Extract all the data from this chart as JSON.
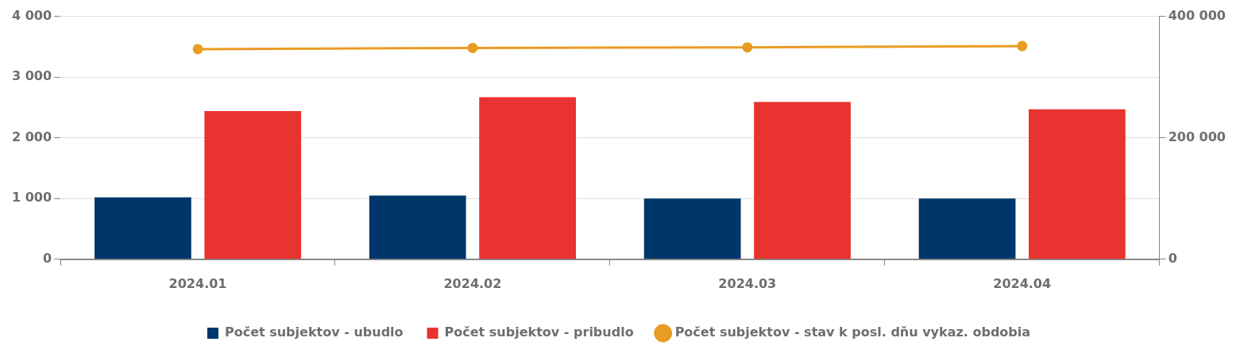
{
  "chart_data": {
    "type": "bar",
    "categories": [
      "2024.01",
      "2024.02",
      "2024.03",
      "2024.04"
    ],
    "series": [
      {
        "name": "Počet subjektov - ubudlo",
        "color": "#003669",
        "values": [
          1020,
          1050,
          1000,
          1000
        ]
      },
      {
        "name": "Počet subjektov - pribudlo",
        "color": "#e83331",
        "values": [
          2440,
          2670,
          2590,
          2470
        ]
      },
      {
        "name": "Počet subjektov - stav k posl. dňu vykaz. obdobia",
        "type": "line",
        "axis": "y2",
        "color": "#e89c23",
        "marker": "circle",
        "values": [
          346000,
          348000,
          349000,
          351000
        ]
      }
    ],
    "ylim": [
      0,
      4000
    ],
    "yticks": [
      {
        "value": 0,
        "label": "0"
      },
      {
        "value": 1000,
        "label": "1 000"
      },
      {
        "value": 2000,
        "label": "2 000"
      },
      {
        "value": 3000,
        "label": "3 000"
      },
      {
        "value": 4000,
        "label": "4 000"
      }
    ],
    "y2lim": [
      0,
      400000
    ],
    "y2ticks": [
      {
        "value": 0,
        "label": "0"
      },
      {
        "value": 200000,
        "label": "200 000"
      },
      {
        "value": 400000,
        "label": "400 000"
      }
    ],
    "grid": "y",
    "legend": "bottom"
  }
}
